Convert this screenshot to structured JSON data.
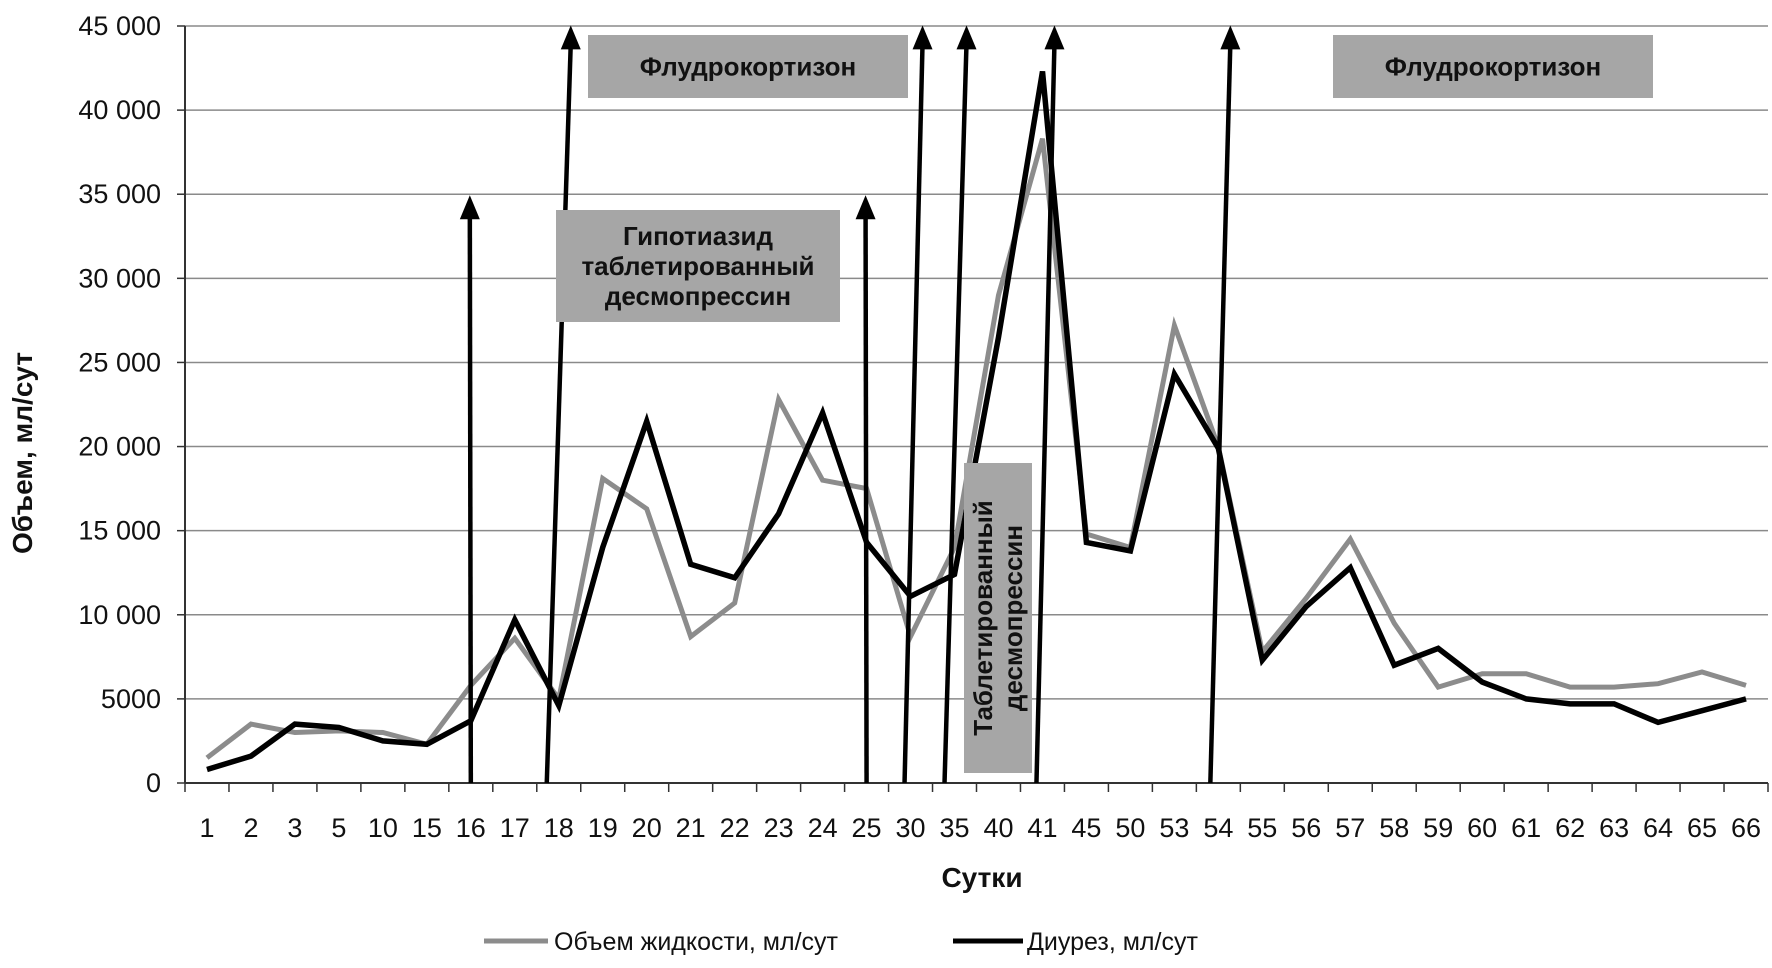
{
  "chart_data": {
    "type": "line",
    "xlabel": "Сутки",
    "ylabel": "Объем, мл/сут",
    "ylim": [
      0,
      45000
    ],
    "yticks": [
      0,
      5000,
      10000,
      15000,
      20000,
      25000,
      30000,
      35000,
      40000,
      45000
    ],
    "ytick_labels": [
      "0",
      "5000",
      "10 000",
      "15 000",
      "20 000",
      "25 000",
      "30 000",
      "35 000",
      "40 000",
      "45 000"
    ],
    "grid": true,
    "legend": "bottom",
    "categories": [
      "1",
      "2",
      "3",
      "5",
      "10",
      "15",
      "16",
      "17",
      "18",
      "19",
      "20",
      "21",
      "22",
      "23",
      "24",
      "25",
      "30",
      "35",
      "40",
      "41",
      "45",
      "50",
      "53",
      "54",
      "55",
      "56",
      "57",
      "58",
      "59",
      "60",
      "61",
      "62",
      "63",
      "64",
      "65",
      "66"
    ],
    "series": [
      {
        "name": "Объем жидкости, мл/сут",
        "color": "#8c8c8c",
        "values": [
          1500,
          3500,
          3000,
          3100,
          3000,
          2300,
          5800,
          8600,
          5000,
          18100,
          16300,
          8700,
          10700,
          22800,
          18000,
          17500,
          8700,
          14000,
          29000,
          38300,
          14800,
          14000,
          27200,
          20000,
          7800,
          11000,
          14500,
          9500,
          5700,
          6500,
          6500,
          5700,
          5700,
          5900,
          6600,
          5800
        ]
      },
      {
        "name": "Диурез, мл/сут",
        "color": "#000000",
        "values": [
          800,
          1600,
          3500,
          3300,
          2500,
          2300,
          3700,
          9700,
          4600,
          14000,
          21500,
          13000,
          12200,
          16000,
          22000,
          14300,
          11100,
          12400,
          26500,
          42300,
          14300,
          13800,
          24300,
          19900,
          7300,
          10500,
          12800,
          7000,
          8000,
          6000,
          5000,
          4700,
          4700,
          3600,
          4300,
          5000
        ]
      }
    ],
    "event_arrows": [
      {
        "category": "16",
        "to": 34700
      },
      {
        "category": "18",
        "to": 44800
      },
      {
        "category": "25",
        "to": 34700
      },
      {
        "category": "30",
        "to": 44800
      },
      {
        "category": "35",
        "to": 44800
      },
      {
        "category": "41",
        "to": 44800
      },
      {
        "category": "54",
        "to": 44800
      }
    ],
    "annotations": [
      {
        "lines": [
          "Флудрокортизон"
        ],
        "color": "#a6a6a6"
      },
      {
        "lines": [
          "Гипотиазид",
          "таблетированный",
          "десмопрессин"
        ],
        "color": "#a6a6a6"
      },
      {
        "lines": [
          "Таблетированный",
          "десмопрессин"
        ],
        "rotated": true,
        "color": "#a6a6a6"
      },
      {
        "lines": [
          "Флудрокортизон"
        ],
        "color": "#a6a6a6"
      }
    ]
  }
}
